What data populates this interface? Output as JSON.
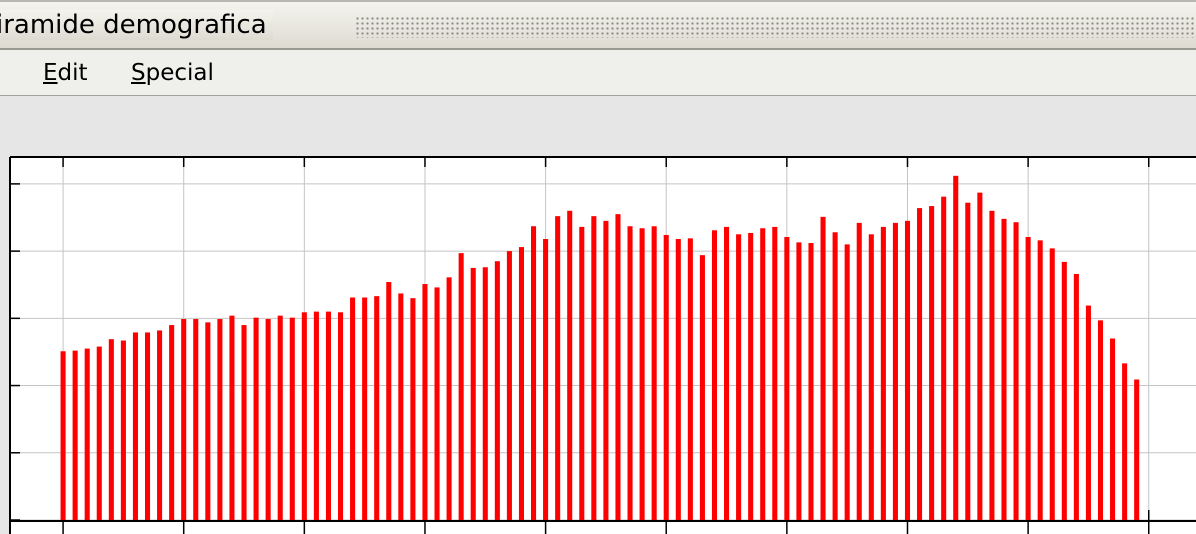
{
  "window": {
    "title": "iramide demografica",
    "menu": [
      "Edit",
      "Special"
    ]
  },
  "chart_data": {
    "type": "bar",
    "color": "#ff0000",
    "grid": true,
    "x": [
      0,
      1,
      2,
      3,
      4,
      5,
      6,
      7,
      8,
      9,
      10,
      11,
      12,
      13,
      14,
      15,
      16,
      17,
      18,
      19,
      20,
      21,
      22,
      23,
      24,
      25,
      26,
      27,
      28,
      29,
      30,
      31,
      32,
      33,
      34,
      35,
      36,
      37,
      38,
      39,
      40,
      41,
      42,
      43,
      44,
      45,
      46,
      47,
      48,
      49,
      50,
      51,
      52,
      53,
      54,
      55,
      56,
      57,
      58,
      59,
      60,
      61,
      62,
      63,
      64,
      65,
      66,
      67,
      68,
      69,
      70,
      71,
      72,
      73,
      74,
      75,
      76,
      77,
      78,
      79,
      80,
      81,
      82,
      83,
      84,
      85,
      86,
      87,
      88,
      89
    ],
    "values": [
      2.51,
      2.52,
      2.55,
      2.58,
      2.69,
      2.67,
      2.79,
      2.79,
      2.82,
      2.9,
      2.99,
      2.99,
      2.94,
      2.99,
      3.04,
      2.9,
      3.01,
      2.99,
      3.04,
      3.01,
      3.09,
      3.1,
      3.1,
      3.09,
      3.31,
      3.31,
      3.33,
      3.54,
      3.37,
      3.3,
      3.51,
      3.46,
      3.61,
      3.97,
      3.75,
      3.76,
      3.85,
      4.0,
      4.06,
      4.37,
      4.18,
      4.52,
      4.6,
      4.36,
      4.52,
      4.45,
      4.55,
      4.37,
      4.34,
      4.37,
      4.24,
      4.18,
      4.19,
      3.94,
      4.31,
      4.36,
      4.25,
      4.27,
      4.34,
      4.36,
      4.21,
      4.13,
      4.12,
      4.51,
      4.28,
      4.1,
      4.42,
      4.25,
      4.36,
      4.42,
      4.45,
      4.64,
      4.67,
      4.81,
      5.12,
      4.72,
      4.87,
      4.6,
      4.48,
      4.43,
      4.21,
      4.16,
      4.04,
      3.84,
      3.66,
      3.19,
      2.97,
      2.7,
      2.33,
      2.09
    ],
    "xlim": [
      -4.4,
      94
    ],
    "xticks": [
      0,
      10,
      20,
      30,
      40,
      50,
      60,
      70,
      80,
      90
    ],
    "ylim": [
      0,
      5.4
    ],
    "yticks": [
      0,
      1,
      2,
      3,
      4,
      5
    ]
  }
}
